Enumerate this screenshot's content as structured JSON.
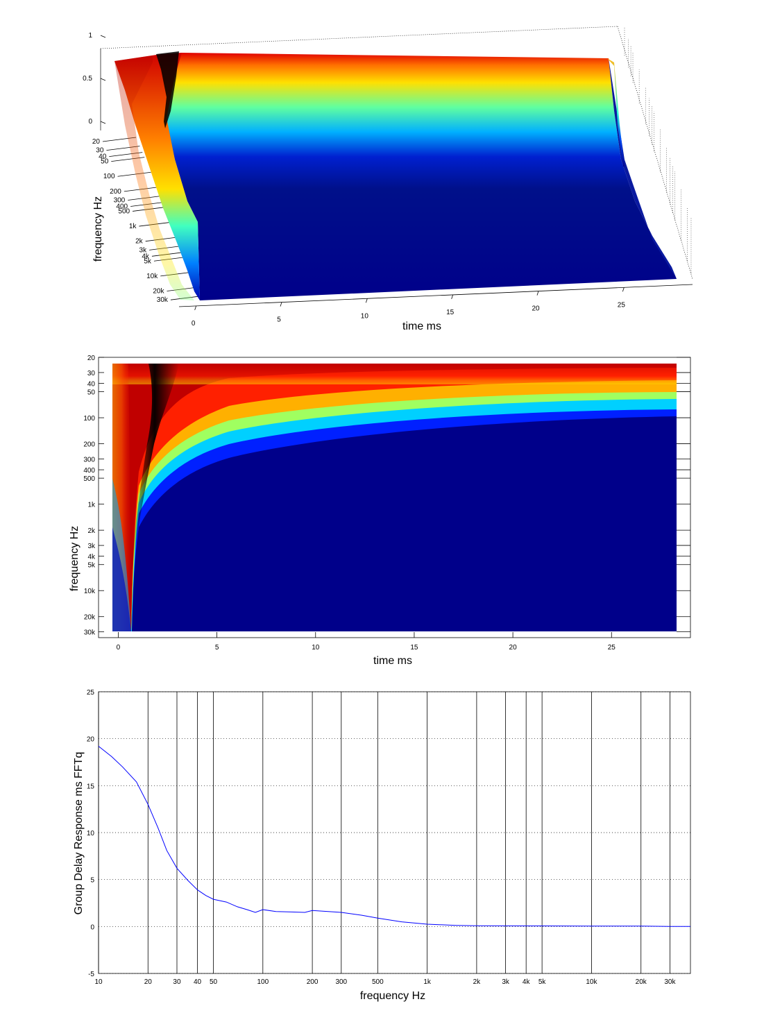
{
  "chart_data": [
    {
      "type": "surface",
      "view": "3d",
      "xlabel": "time   ms",
      "ylabel": "frequency   Hz",
      "zlabel": "",
      "x_ticks": [
        "0",
        "5",
        "10",
        "15",
        "20",
        "25"
      ],
      "y_ticks": [
        "20",
        "30",
        "40",
        "50",
        "100",
        "200",
        "300",
        "400",
        "500",
        "1k",
        "2k",
        "3k",
        "4k",
        "5k",
        "10k",
        "20k",
        "30k"
      ],
      "z_ticks": [
        "0",
        "0.5",
        "1"
      ],
      "xlim": [
        -1,
        29
      ],
      "ylim_hz": [
        20,
        35000
      ],
      "zlim": [
        0,
        1
      ],
      "colormap": "jet",
      "grid": true
    },
    {
      "type": "heatmap",
      "view": "top",
      "xlabel": "time   ms",
      "ylabel": "frequency   Hz",
      "x_ticks": [
        "0",
        "5",
        "10",
        "15",
        "20",
        "25"
      ],
      "y_ticks": [
        "20",
        "30",
        "40",
        "50",
        "100",
        "200",
        "300",
        "400",
        "500",
        "1k",
        "2k",
        "3k",
        "4k",
        "5k",
        "10k",
        "20k",
        "30k"
      ],
      "xlim": [
        -1,
        29
      ],
      "ylim_hz": [
        20,
        35000
      ],
      "colormap": "jet",
      "peak_time_ms": [
        {
          "hz": 28,
          "ms": 1.8
        },
        {
          "hz": 50,
          "ms": 1.5
        },
        {
          "hz": 100,
          "ms": 1.4
        },
        {
          "hz": 300,
          "ms": 1.2
        },
        {
          "hz": 500,
          "ms": 0.9
        },
        {
          "hz": 1000,
          "ms": 0.5
        },
        {
          "hz": 3000,
          "ms": 0.2
        },
        {
          "hz": 30000,
          "ms": 0.05
        }
      ]
    },
    {
      "type": "line",
      "xlabel": "frequency   Hz",
      "ylabel": "Group Delay Response ms    FFTq",
      "xscale": "log",
      "xlim": [
        10,
        40000
      ],
      "ylim": [
        -5,
        25
      ],
      "x_ticks": [
        "10",
        "20",
        "30",
        "40",
        "50",
        "100",
        "200",
        "300",
        "500",
        "1k",
        "2k",
        "3k",
        "4k",
        "5k",
        "10k",
        "20k",
        "30k"
      ],
      "y_ticks": [
        "-5",
        "0",
        "5",
        "10",
        "15",
        "20",
        "25"
      ],
      "grid": "vertical solid, horizontal dotted",
      "series": [
        {
          "color": "#0000ff",
          "x": [
            10,
            12,
            14,
            17,
            20,
            23,
            26,
            30,
            35,
            40,
            45,
            50,
            60,
            70,
            80,
            90,
            100,
            120,
            150,
            180,
            200,
            250,
            300,
            400,
            500,
            700,
            1000,
            1500,
            2000,
            5000,
            10000,
            20000,
            30000,
            40000
          ],
          "y": [
            19.2,
            18.1,
            17.0,
            15.4,
            13.0,
            10.5,
            8.1,
            6.2,
            4.9,
            3.9,
            3.3,
            2.9,
            2.6,
            2.1,
            1.8,
            1.5,
            1.8,
            1.6,
            1.55,
            1.5,
            1.7,
            1.6,
            1.5,
            1.2,
            0.9,
            0.5,
            0.25,
            0.12,
            0.08,
            0.06,
            0.05,
            0.05,
            0.0,
            0.0
          ]
        }
      ]
    }
  ]
}
